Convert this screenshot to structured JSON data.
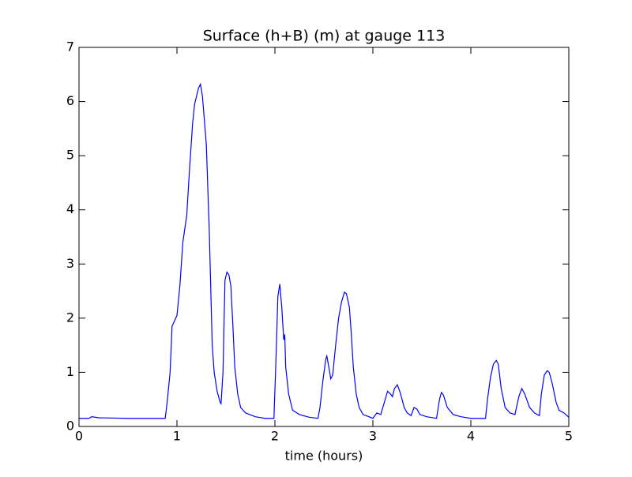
{
  "chart_data": {
    "type": "line",
    "title": "Surface (h+B) (m) at gauge 113",
    "x_label": "time (hours)",
    "xlim": [
      0,
      5
    ],
    "xticks": [
      0,
      1,
      2,
      3,
      4,
      5
    ],
    "ylim": [
      0,
      7
    ],
    "yticks": [
      0,
      1,
      2,
      3,
      4,
      5,
      6,
      7
    ],
    "grid": false,
    "series": [
      {
        "color": "#0000ff",
        "dashed": false,
        "x": [
          0,
          0.1,
          0.13,
          0.2,
          0.5,
          0.88,
          0.9,
          0.93,
          0.95,
          0.97,
          1.0,
          1.03,
          1.06,
          1.1,
          1.13,
          1.16,
          1.18,
          1.22,
          1.24,
          1.26,
          1.3,
          1.33,
          1.36,
          1.38,
          1.41,
          1.44,
          1.45,
          1.47,
          1.49,
          1.51,
          1.53,
          1.55,
          1.57,
          1.59,
          1.62,
          1.65,
          1.7,
          1.8,
          1.9,
          1.99,
          2.01,
          2.03,
          2.05,
          2.07,
          2.09,
          2.1,
          2.11,
          2.14,
          2.18,
          2.25,
          2.35,
          2.44,
          2.46,
          2.49,
          2.52,
          2.53,
          2.55,
          2.57,
          2.59,
          2.62,
          2.65,
          2.68,
          2.71,
          2.73,
          2.76,
          2.78,
          2.8,
          2.83,
          2.86,
          2.9,
          2.96,
          3.0,
          3.04,
          3.08,
          3.11,
          3.15,
          3.18,
          3.2,
          3.22,
          3.25,
          3.28,
          3.32,
          3.35,
          3.39,
          3.42,
          3.45,
          3.48,
          3.55,
          3.65,
          3.68,
          3.7,
          3.72,
          3.76,
          3.82,
          3.9,
          4.0,
          4.15,
          4.17,
          4.2,
          4.23,
          4.26,
          4.28,
          4.31,
          4.35,
          4.4,
          4.45,
          4.49,
          4.52,
          4.55,
          4.6,
          4.65,
          4.7,
          4.72,
          4.75,
          4.78,
          4.8,
          4.83,
          4.87,
          4.9,
          4.95,
          5.0
        ],
        "values": [
          0.15,
          0.15,
          0.18,
          0.16,
          0.15,
          0.15,
          0.45,
          1.0,
          1.85,
          1.93,
          2.05,
          2.6,
          3.4,
          3.9,
          4.8,
          5.6,
          5.95,
          6.25,
          6.32,
          6.1,
          5.2,
          3.6,
          1.5,
          1.0,
          0.65,
          0.45,
          0.42,
          1.0,
          2.7,
          2.85,
          2.8,
          2.6,
          1.9,
          1.1,
          0.6,
          0.35,
          0.25,
          0.18,
          0.15,
          0.15,
          1.2,
          2.4,
          2.63,
          2.2,
          1.6,
          1.7,
          1.1,
          0.6,
          0.3,
          0.22,
          0.17,
          0.15,
          0.35,
          0.85,
          1.25,
          1.3,
          1.1,
          0.88,
          0.95,
          1.5,
          2.0,
          2.3,
          2.48,
          2.45,
          2.2,
          1.7,
          1.1,
          0.6,
          0.35,
          0.22,
          0.18,
          0.15,
          0.25,
          0.22,
          0.4,
          0.65,
          0.6,
          0.55,
          0.7,
          0.77,
          0.62,
          0.35,
          0.25,
          0.2,
          0.35,
          0.32,
          0.22,
          0.18,
          0.15,
          0.5,
          0.63,
          0.58,
          0.35,
          0.22,
          0.18,
          0.15,
          0.15,
          0.5,
          0.9,
          1.15,
          1.22,
          1.15,
          0.7,
          0.35,
          0.25,
          0.22,
          0.55,
          0.7,
          0.6,
          0.35,
          0.25,
          0.2,
          0.6,
          0.95,
          1.03,
          1.0,
          0.8,
          0.45,
          0.3,
          0.25,
          0.17
        ]
      },
      {
        "color": "#000000",
        "dashed": true,
        "x": [
          0,
          5
        ],
        "values": [
          0,
          0
        ]
      }
    ]
  }
}
